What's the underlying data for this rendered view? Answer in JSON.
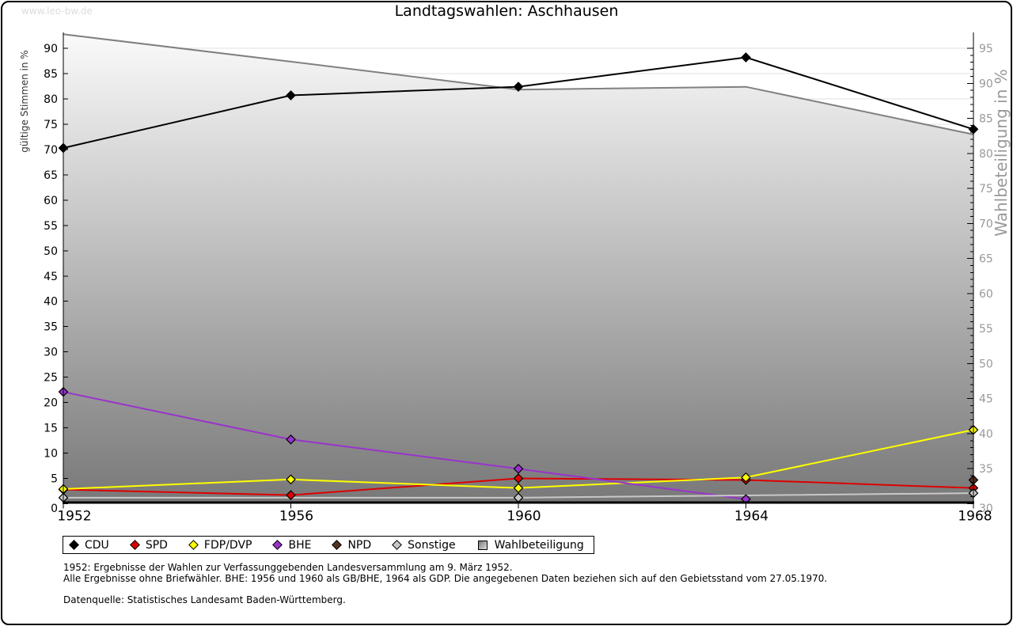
{
  "site_watermark": "www.leo-bw.de",
  "title": "Landtagswahlen: Aschhausen",
  "chart_data": {
    "type": "line",
    "title": "Landtagswahlen: Aschhausen",
    "x": [
      1952,
      1956,
      1960,
      1964,
      1968
    ],
    "y_left": {
      "label": "gültige Stimmen in %",
      "min": 0,
      "max": 90,
      "tick_step": 5
    },
    "y_right": {
      "label": "Wahlbeteiligung in %",
      "min": 30,
      "max": 95,
      "tick_step": 5,
      "minor_step": 1
    },
    "grid": true,
    "legend_position": "bottom",
    "series": [
      {
        "name": "CDU",
        "color": "#000000",
        "axis": "left",
        "marker": "diamond",
        "values": [
          70.3,
          80.7,
          82.4,
          88.2,
          74.0
        ]
      },
      {
        "name": "SPD",
        "color": "#dd0000",
        "axis": "left",
        "marker": "diamond",
        "values": [
          2.8,
          1.7,
          5.0,
          4.7,
          3.1
        ]
      },
      {
        "name": "FDP/DVP",
        "color": "#ffff00",
        "axis": "left",
        "marker": "diamond",
        "values": [
          2.9,
          4.8,
          3.1,
          5.2,
          14.6
        ]
      },
      {
        "name": "BHE",
        "color": "#9933cc",
        "axis": "left",
        "marker": "diamond",
        "values": [
          22.1,
          12.7,
          6.9,
          0.9,
          null
        ]
      },
      {
        "name": "NPD",
        "color": "#553322",
        "axis": "left",
        "marker": "diamond",
        "values": [
          null,
          null,
          null,
          null,
          4.7
        ]
      },
      {
        "name": "Sonstige",
        "color": "#c8c8c8",
        "axis": "left",
        "marker": "diamond",
        "values": [
          1.2,
          null,
          1.2,
          null,
          2.1
        ],
        "connect_gaps": true
      },
      {
        "name": "Wahlbeteiligung",
        "color": "#808080",
        "axis": "right",
        "marker": "square",
        "area": true,
        "values": [
          97.0,
          93.1,
          89.1,
          89.5,
          82.7
        ]
      }
    ]
  },
  "footnotes": [
    "1952: Ergebnisse der Wahlen zur Verfassunggebenden Landesversammlung am 9. März 1952.",
    "Alle Ergebnisse ohne Briefwähler. BHE: 1956 und 1960 als GB/BHE, 1964 als GDP. Die angegebenen Daten beziehen sich auf den Gebietsstand vom 27.05.1970."
  ],
  "source_note": "Datenquelle: Statistisches Landesamt Baden-Württemberg."
}
